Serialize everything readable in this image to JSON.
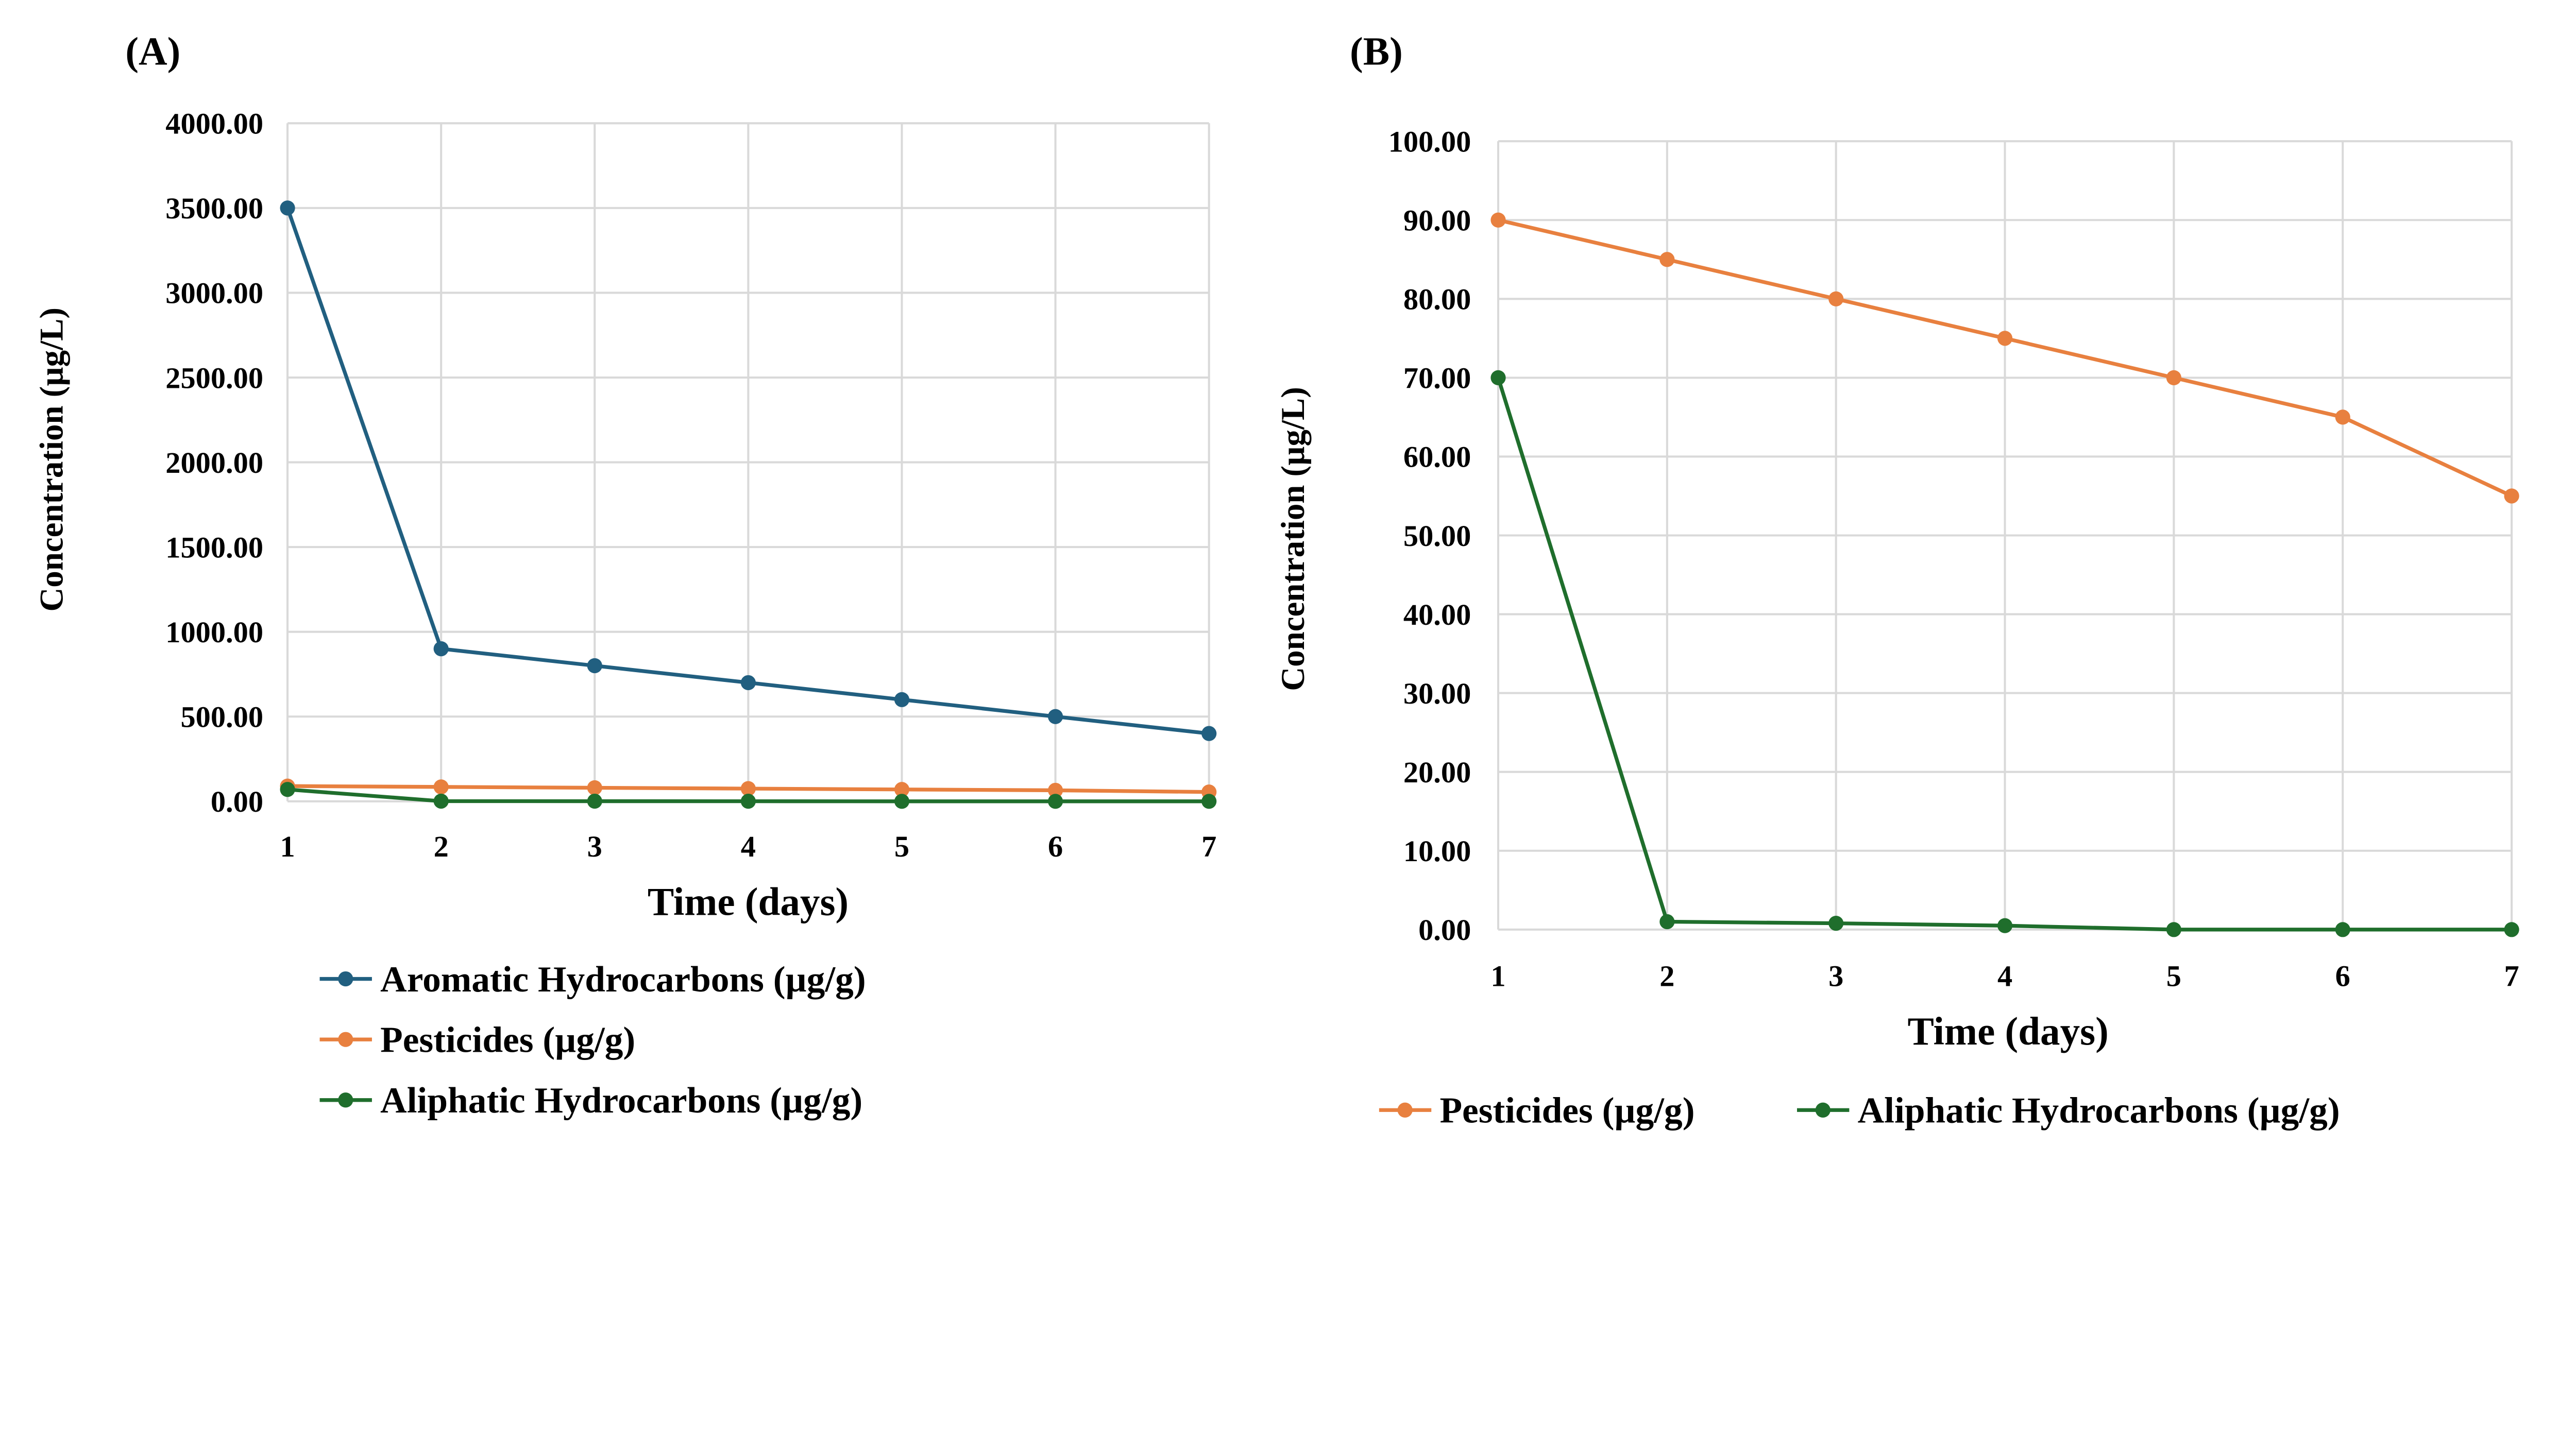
{
  "chart_data": [
    {
      "panel_label": "(A)",
      "type": "line",
      "xlabel": "Time (days)",
      "ylabel": "Concentration (µg/L)",
      "x": [
        1,
        2,
        3,
        4,
        5,
        6,
        7
      ],
      "xticks": [
        "1",
        "2",
        "3",
        "4",
        "5",
        "6",
        "7"
      ],
      "ylim": [
        0,
        4000
      ],
      "yticks": [
        "0.00",
        "500.00",
        "1000.00",
        "1500.00",
        "2000.00",
        "2500.00",
        "3000.00",
        "3500.00",
        "4000.00"
      ],
      "ytick_values": [
        0,
        500,
        1000,
        1500,
        2000,
        2500,
        3000,
        3500,
        4000
      ],
      "grid": true,
      "legend_position": "bottom",
      "series": [
        {
          "name": "Aromatic Hydrocarbons (µg/g)",
          "color": "#215f80",
          "values": [
            3500,
            900,
            800,
            700,
            600,
            500,
            400
          ]
        },
        {
          "name": "Pesticides (µg/g)",
          "color": "#e8803f",
          "values": [
            90,
            85,
            80,
            75,
            70,
            65,
            55
          ]
        },
        {
          "name": "Aliphatic Hydrocarbons (µg/g)",
          "color": "#1f6e2c",
          "values": [
            70,
            1,
            0.8,
            0.5,
            0,
            0,
            0
          ]
        }
      ]
    },
    {
      "panel_label": "(B)",
      "type": "line",
      "xlabel": "Time (days)",
      "ylabel": "Concentration (µg/L)",
      "x": [
        1,
        2,
        3,
        4,
        5,
        6,
        7
      ],
      "xticks": [
        "1",
        "2",
        "3",
        "4",
        "5",
        "6",
        "7"
      ],
      "ylim": [
        0,
        100
      ],
      "yticks": [
        "0.00",
        "10.00",
        "20.00",
        "30.00",
        "40.00",
        "50.00",
        "60.00",
        "70.00",
        "80.00",
        "90.00",
        "100.00"
      ],
      "ytick_values": [
        0,
        10,
        20,
        30,
        40,
        50,
        60,
        70,
        80,
        90,
        100
      ],
      "grid": true,
      "legend_position": "bottom",
      "series": [
        {
          "name": "Pesticides (µg/g)",
          "color": "#e8803f",
          "values": [
            90,
            85,
            80,
            75,
            70,
            65,
            55
          ]
        },
        {
          "name": "Aliphatic Hydrocarbons (µg/g)",
          "color": "#1f6e2c",
          "values": [
            70,
            1,
            0.8,
            0.5,
            0,
            0,
            0
          ]
        }
      ]
    }
  ]
}
